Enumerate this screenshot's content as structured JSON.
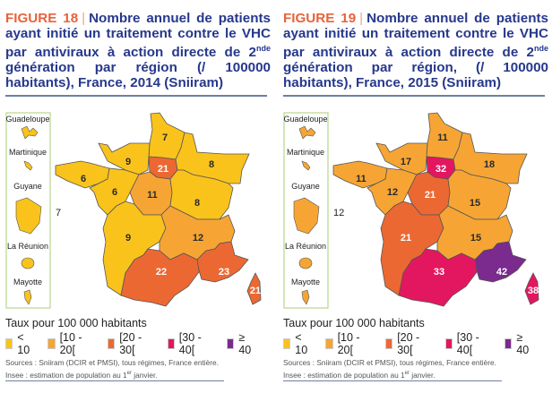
{
  "legend": {
    "title": "Taux pour 100 000 habitants",
    "classes": [
      {
        "label": "< 10",
        "color": "#f9c31c",
        "min": 0,
        "max": 10
      },
      {
        "label": "[10 - 20[",
        "color": "#f6a534",
        "min": 10,
        "max": 20
      },
      {
        "label": "[20 - 30[",
        "color": "#ec6833",
        "min": 20,
        "max": 30
      },
      {
        "label": "[30 - 40[",
        "color": "#e3175f",
        "min": 30,
        "max": 40
      },
      {
        "label": "≥ 40",
        "color": "#7b2a8e",
        "min": 40,
        "max": 999
      }
    ]
  },
  "dom_labels": [
    "Guadeloupe",
    "Martinique",
    "Guyane",
    "La Réunion",
    "Mayotte"
  ],
  "figures": [
    {
      "fig": "FIGURE 18",
      "sep": "|",
      "title": "Nombre annuel de patients ayant initié un traitement contre le VHC par antiviraux à action directe de 2",
      "sup": "nde",
      "title2": " génération par région (/ 100000 habitants), France, 2014 (Sniiram)",
      "dom_value": "7",
      "regions": [
        7,
        9,
        21,
        8,
        6,
        6,
        11,
        8,
        9,
        12,
        22,
        23,
        21
      ],
      "sources": "Sources : Sniiram (DCIR et PMSI), tous régimes, France entière. Insee : estimation de population au 1",
      "sources_sup": "er",
      "sources_end": " janvier."
    },
    {
      "fig": "FIGURE 19",
      "sep": "|",
      "title": "Nombre annuel de patients ayant initié un traitement contre le VHC par antiviraux à action directe de 2",
      "sup": "nde",
      "title2": " génération par région, (/ 100000 habitants), France, 2015 (Sniiram)",
      "dom_value": "12",
      "regions": [
        11,
        17,
        32,
        18,
        11,
        12,
        21,
        15,
        21,
        15,
        33,
        42,
        38
      ],
      "sources": "Sources : Sniiram (DCIR et PMSI), tous régimes, France entière. Insee : estimation de population au 1",
      "sources_sup": "er",
      "sources_end": " janvier."
    }
  ]
}
